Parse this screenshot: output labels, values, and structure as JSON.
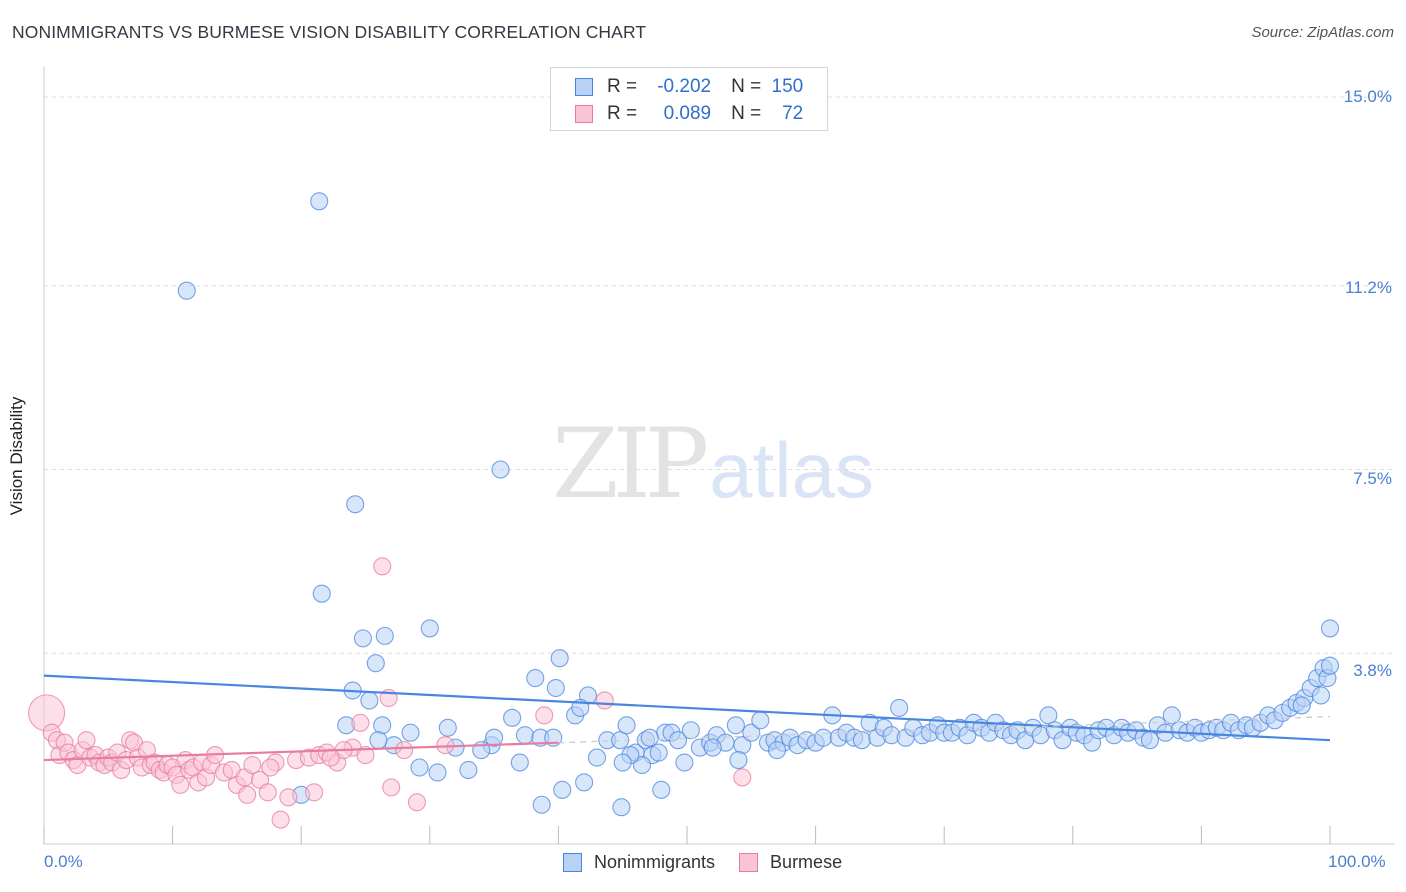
{
  "title": "NONIMMIGRANTS VS BURMESE VISION DISABILITY CORRELATION CHART",
  "source": "Source: ZipAtlas.com",
  "watermark": {
    "zip": "ZIP",
    "atlas": "atlas"
  },
  "legend": {
    "rows": [
      {
        "r_label": "R =",
        "r_value": "-0.202",
        "n_label": "N =",
        "n_value": "150",
        "color": "#4a86e0",
        "fill": "#b8d2f5"
      },
      {
        "r_label": "R =",
        "r_value": "0.089",
        "n_label": "N =",
        "n_value": "72",
        "color": "#e77ba0",
        "fill": "#f9c4d5"
      }
    ]
  },
  "bottom_legend": [
    {
      "label": "Nonimmigrants",
      "color": "#4a86e0",
      "fill": "#b8d2f5"
    },
    {
      "label": "Burmese",
      "color": "#e77ba0",
      "fill": "#f9c4d5"
    }
  ],
  "chart_data": {
    "type": "scatter",
    "title": "NONIMMIGRANTS VS BURMESE VISION DISABILITY CORRELATION CHART",
    "xlabel": "",
    "ylabel": "Vision Disability",
    "xlim": [
      0,
      100
    ],
    "ylim": [
      0,
      15.0
    ],
    "x_tick_labels": [
      "0.0%",
      "100.0%"
    ],
    "y_ticks": [
      3.8,
      7.5,
      11.2,
      15.0
    ],
    "y_tick_labels": [
      "3.8%",
      "7.5%",
      "11.2%",
      "15.0%"
    ],
    "series": [
      {
        "name": "Nonimmigrants",
        "color": "#4a86e0",
        "fill": "#b8d2f5",
        "trend": {
          "x": [
            0,
            100
          ],
          "y": [
            3.35,
            2.05
          ]
        },
        "points": [
          [
            11.1,
            11.1
          ],
          [
            21.4,
            12.9
          ],
          [
            24.2,
            6.8
          ],
          [
            35.5,
            7.5
          ],
          [
            21.6,
            5.0
          ],
          [
            24.8,
            4.1
          ],
          [
            26.5,
            4.15
          ],
          [
            30.0,
            4.3
          ],
          [
            25.8,
            3.6
          ],
          [
            40.1,
            3.7
          ],
          [
            38.2,
            3.3
          ],
          [
            39.8,
            3.1
          ],
          [
            42.3,
            2.95
          ],
          [
            25.3,
            2.85
          ],
          [
            26.3,
            2.35
          ],
          [
            28.5,
            2.2
          ],
          [
            27.2,
            1.95
          ],
          [
            29.2,
            1.5
          ],
          [
            30.6,
            1.4
          ],
          [
            33.0,
            1.45
          ],
          [
            31.4,
            2.3
          ],
          [
            34.8,
            1.95
          ],
          [
            35.0,
            2.1
          ],
          [
            36.4,
            2.5
          ],
          [
            37.4,
            2.15
          ],
          [
            38.6,
            2.1
          ],
          [
            39.6,
            2.1
          ],
          [
            41.3,
            2.55
          ],
          [
            41.7,
            2.7
          ],
          [
            43.0,
            1.7
          ],
          [
            43.8,
            2.05
          ],
          [
            44.8,
            2.05
          ],
          [
            45.3,
            2.35
          ],
          [
            46.0,
            1.8
          ],
          [
            46.8,
            2.05
          ],
          [
            47.3,
            1.75
          ],
          [
            47.8,
            1.8
          ],
          [
            48.3,
            2.2
          ],
          [
            48.8,
            2.2
          ],
          [
            49.3,
            2.05
          ],
          [
            50.3,
            2.25
          ],
          [
            51.0,
            1.9
          ],
          [
            51.8,
            2.0
          ],
          [
            52.3,
            2.15
          ],
          [
            53.0,
            2.0
          ],
          [
            53.8,
            2.35
          ],
          [
            54.3,
            1.95
          ],
          [
            55.0,
            2.2
          ],
          [
            55.7,
            2.45
          ],
          [
            56.3,
            2.0
          ],
          [
            56.8,
            2.05
          ],
          [
            57.5,
            2.0
          ],
          [
            58.0,
            2.1
          ],
          [
            58.6,
            1.95
          ],
          [
            59.3,
            2.05
          ],
          [
            60.0,
            2.0
          ],
          [
            60.6,
            2.1
          ],
          [
            61.3,
            2.55
          ],
          [
            61.8,
            2.1
          ],
          [
            62.4,
            2.2
          ],
          [
            63.0,
            2.1
          ],
          [
            63.6,
            2.05
          ],
          [
            64.2,
            2.4
          ],
          [
            64.8,
            2.1
          ],
          [
            65.3,
            2.3
          ],
          [
            65.9,
            2.15
          ],
          [
            66.5,
            2.7
          ],
          [
            67.0,
            2.1
          ],
          [
            67.6,
            2.3
          ],
          [
            68.3,
            2.15
          ],
          [
            68.9,
            2.2
          ],
          [
            69.5,
            2.35
          ],
          [
            70.0,
            2.2
          ],
          [
            70.6,
            2.2
          ],
          [
            71.2,
            2.3
          ],
          [
            71.8,
            2.15
          ],
          [
            72.3,
            2.4
          ],
          [
            72.9,
            2.3
          ],
          [
            73.5,
            2.2
          ],
          [
            74.0,
            2.4
          ],
          [
            74.6,
            2.25
          ],
          [
            75.2,
            2.15
          ],
          [
            75.7,
            2.25
          ],
          [
            76.3,
            2.05
          ],
          [
            76.9,
            2.3
          ],
          [
            77.5,
            2.15
          ],
          [
            78.1,
            2.55
          ],
          [
            78.6,
            2.25
          ],
          [
            79.2,
            2.05
          ],
          [
            79.8,
            2.3
          ],
          [
            80.3,
            2.2
          ],
          [
            80.9,
            2.15
          ],
          [
            81.5,
            2.0
          ],
          [
            82.0,
            2.25
          ],
          [
            82.6,
            2.3
          ],
          [
            83.2,
            2.15
          ],
          [
            83.8,
            2.3
          ],
          [
            84.3,
            2.2
          ],
          [
            84.9,
            2.25
          ],
          [
            85.5,
            2.1
          ],
          [
            86.0,
            2.05
          ],
          [
            86.6,
            2.35
          ],
          [
            87.2,
            2.2
          ],
          [
            87.7,
            2.55
          ],
          [
            88.3,
            2.25
          ],
          [
            88.9,
            2.2
          ],
          [
            89.5,
            2.3
          ],
          [
            90.0,
            2.2
          ],
          [
            90.6,
            2.25
          ],
          [
            91.2,
            2.3
          ],
          [
            91.7,
            2.25
          ],
          [
            92.3,
            2.4
          ],
          [
            92.9,
            2.25
          ],
          [
            93.5,
            2.35
          ],
          [
            94.0,
            2.3
          ],
          [
            94.6,
            2.4
          ],
          [
            95.2,
            2.55
          ],
          [
            95.7,
            2.45
          ],
          [
            96.3,
            2.6
          ],
          [
            96.9,
            2.7
          ],
          [
            97.4,
            2.8
          ],
          [
            98.0,
            2.9
          ],
          [
            98.5,
            3.1
          ],
          [
            99.0,
            3.3
          ],
          [
            99.5,
            3.5
          ],
          [
            99.8,
            3.3
          ],
          [
            99.3,
            2.95
          ],
          [
            97.8,
            2.75
          ],
          [
            100.0,
            4.3
          ],
          [
            100.0,
            3.55
          ],
          [
            48.0,
            1.05
          ],
          [
            44.9,
            0.7
          ],
          [
            42.0,
            1.2
          ],
          [
            38.7,
            0.75
          ],
          [
            24.0,
            3.05
          ],
          [
            26.0,
            2.05
          ],
          [
            32.0,
            1.9
          ],
          [
            34.0,
            1.85
          ],
          [
            37.0,
            1.6
          ],
          [
            46.5,
            1.55
          ],
          [
            45.6,
            1.75
          ],
          [
            47.1,
            2.1
          ],
          [
            20.0,
            0.95
          ],
          [
            40.3,
            1.05
          ],
          [
            49.8,
            1.6
          ],
          [
            52.0,
            1.9
          ],
          [
            54.0,
            1.65
          ],
          [
            57.0,
            1.85
          ],
          [
            23.5,
            2.35
          ],
          [
            45.0,
            1.6
          ]
        ]
      },
      {
        "name": "Burmese",
        "color": "#e77ba0",
        "fill": "#f9c4d5",
        "trend": {
          "x": [
            0,
            40
          ],
          "y": [
            1.65,
            2.0
          ]
        },
        "points": [
          [
            0.2,
            2.6
          ],
          [
            0.6,
            2.2
          ],
          [
            1.0,
            2.05
          ],
          [
            1.2,
            1.75
          ],
          [
            1.6,
            2.0
          ],
          [
            1.9,
            1.8
          ],
          [
            2.3,
            1.65
          ],
          [
            2.6,
            1.55
          ],
          [
            3.0,
            1.85
          ],
          [
            3.3,
            2.05
          ],
          [
            3.6,
            1.7
          ],
          [
            4.0,
            1.75
          ],
          [
            4.3,
            1.6
          ],
          [
            4.7,
            1.55
          ],
          [
            5.0,
            1.7
          ],
          [
            5.3,
            1.6
          ],
          [
            5.7,
            1.8
          ],
          [
            6.0,
            1.45
          ],
          [
            6.4,
            1.65
          ],
          [
            6.7,
            2.05
          ],
          [
            7.0,
            2.0
          ],
          [
            7.3,
            1.7
          ],
          [
            7.6,
            1.5
          ],
          [
            8.0,
            1.85
          ],
          [
            8.3,
            1.55
          ],
          [
            8.6,
            1.6
          ],
          [
            9.0,
            1.45
          ],
          [
            9.3,
            1.4
          ],
          [
            9.6,
            1.55
          ],
          [
            10.0,
            1.5
          ],
          [
            10.3,
            1.35
          ],
          [
            10.6,
            1.15
          ],
          [
            11.0,
            1.65
          ],
          [
            11.3,
            1.45
          ],
          [
            11.6,
            1.5
          ],
          [
            12.0,
            1.2
          ],
          [
            12.3,
            1.6
          ],
          [
            12.6,
            1.3
          ],
          [
            13.0,
            1.55
          ],
          [
            13.3,
            1.75
          ],
          [
            14.0,
            1.4
          ],
          [
            14.6,
            1.45
          ],
          [
            15.0,
            1.15
          ],
          [
            15.6,
            1.3
          ],
          [
            16.2,
            1.55
          ],
          [
            16.8,
            1.25
          ],
          [
            17.4,
            1.0
          ],
          [
            18.0,
            1.6
          ],
          [
            19.6,
            1.65
          ],
          [
            20.6,
            1.7
          ],
          [
            21.4,
            1.75
          ],
          [
            22.0,
            1.8
          ],
          [
            22.8,
            1.6
          ],
          [
            24.0,
            1.9
          ],
          [
            24.6,
            2.4
          ],
          [
            25.0,
            1.75
          ],
          [
            26.3,
            5.55
          ],
          [
            27.0,
            1.1
          ],
          [
            29.0,
            0.8
          ],
          [
            31.2,
            1.95
          ],
          [
            38.9,
            2.55
          ],
          [
            43.6,
            2.85
          ],
          [
            54.3,
            1.3
          ],
          [
            17.6,
            1.5
          ],
          [
            19.0,
            0.9
          ],
          [
            21.0,
            1.0
          ],
          [
            15.8,
            0.95
          ],
          [
            18.4,
            0.45
          ],
          [
            28.0,
            1.85
          ],
          [
            26.8,
            2.9
          ],
          [
            23.3,
            1.85
          ],
          [
            22.3,
            1.7
          ]
        ]
      }
    ]
  }
}
